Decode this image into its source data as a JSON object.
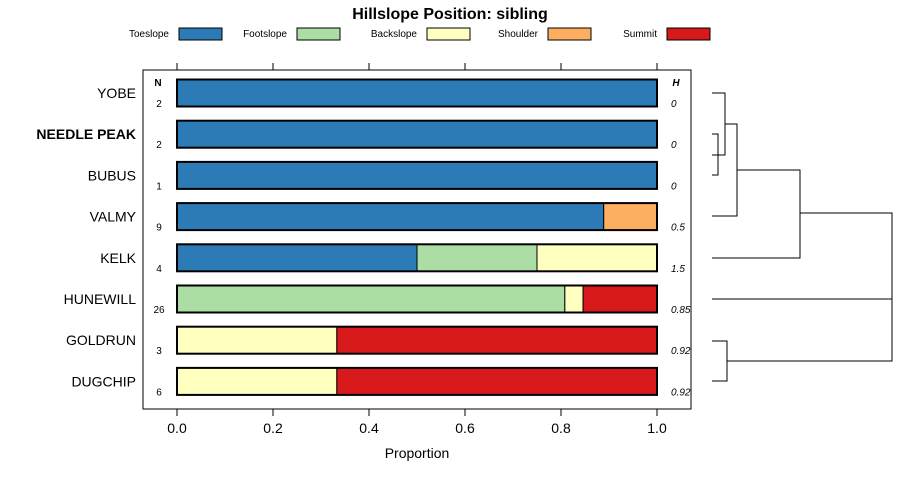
{
  "chart_data": {
    "type": "bar",
    "orientation": "horizontal-stacked",
    "title": "Hillslope Position: sibling",
    "xlabel": "Proportion",
    "xlim": [
      0,
      1
    ],
    "xticks": [
      "0.0",
      "0.2",
      "0.4",
      "0.6",
      "0.8",
      "1.0"
    ],
    "xtick_values": [
      0,
      0.2,
      0.4,
      0.6,
      0.8,
      1.0
    ],
    "n_header": "N",
    "h_header": "H",
    "legend": [
      {
        "name": "Toeslope",
        "color": "#2C7BB6"
      },
      {
        "name": "Footslope",
        "color": "#ABDDA4"
      },
      {
        "name": "Backslope",
        "color": "#FFFFBF"
      },
      {
        "name": "Shoulder",
        "color": "#FDAE61"
      },
      {
        "name": "Summit",
        "color": "#D7191C"
      }
    ],
    "categories": [
      {
        "name": "YOBE",
        "bold": false,
        "n": "2",
        "h": "0",
        "values": [
          1,
          0,
          0,
          0,
          0
        ]
      },
      {
        "name": "NEEDLE PEAK",
        "bold": true,
        "n": "2",
        "h": "0",
        "values": [
          1,
          0,
          0,
          0,
          0
        ]
      },
      {
        "name": "BUBUS",
        "bold": false,
        "n": "1",
        "h": "0",
        "values": [
          1,
          0,
          0,
          0,
          0
        ]
      },
      {
        "name": "VALMY",
        "bold": false,
        "n": "9",
        "h": "0.5",
        "values": [
          0.889,
          0,
          0,
          0.111,
          0
        ]
      },
      {
        "name": "KELK",
        "bold": false,
        "n": "4",
        "h": "1.5",
        "values": [
          0.5,
          0.25,
          0.25,
          0,
          0
        ]
      },
      {
        "name": "HUNEWILL",
        "bold": false,
        "n": "26",
        "h": "0.85",
        "values": [
          0,
          0.808,
          0.038,
          0,
          0.154
        ]
      },
      {
        "name": "GOLDRUN",
        "bold": false,
        "n": "3",
        "h": "0.92",
        "values": [
          0,
          0,
          0.333,
          0,
          0.667
        ]
      },
      {
        "name": "DUGCHIP",
        "bold": false,
        "n": "6",
        "h": "0.92",
        "values": [
          0,
          0,
          0.333,
          0,
          0.667
        ]
      }
    ]
  }
}
